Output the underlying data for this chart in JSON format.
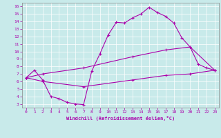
{
  "xlabel": "Windchill (Refroidissement éolien,°C)",
  "background_color": "#c8eaea",
  "line_color": "#aa00aa",
  "xlim": [
    -0.5,
    23.5
  ],
  "ylim": [
    2.5,
    16.5
  ],
  "xticks": [
    0,
    1,
    2,
    3,
    4,
    5,
    6,
    7,
    8,
    9,
    10,
    11,
    12,
    13,
    14,
    15,
    16,
    17,
    18,
    19,
    20,
    21,
    22,
    23
  ],
  "yticks": [
    3,
    4,
    5,
    6,
    7,
    8,
    9,
    10,
    11,
    12,
    13,
    14,
    15,
    16
  ],
  "line1_x": [
    0,
    1,
    2,
    3,
    4,
    5,
    6,
    7,
    8,
    9,
    10,
    11,
    12,
    13,
    14,
    15,
    16,
    17,
    18,
    19,
    20,
    21,
    22,
    23
  ],
  "line1_y": [
    6.5,
    7.5,
    6.2,
    4.0,
    3.7,
    3.2,
    3.0,
    2.9,
    7.4,
    9.7,
    12.2,
    13.9,
    13.8,
    14.5,
    15.0,
    15.9,
    15.2,
    14.7,
    13.8,
    11.8,
    10.6,
    8.3,
    7.8,
    7.5
  ],
  "line2_x": [
    0,
    2,
    7,
    13,
    17,
    20,
    23
  ],
  "line2_y": [
    6.5,
    7.0,
    7.8,
    9.3,
    10.2,
    10.6,
    7.5
  ],
  "line3_x": [
    0,
    2,
    7,
    13,
    17,
    20,
    23
  ],
  "line3_y": [
    6.5,
    6.0,
    5.3,
    6.2,
    6.8,
    7.0,
    7.5
  ]
}
